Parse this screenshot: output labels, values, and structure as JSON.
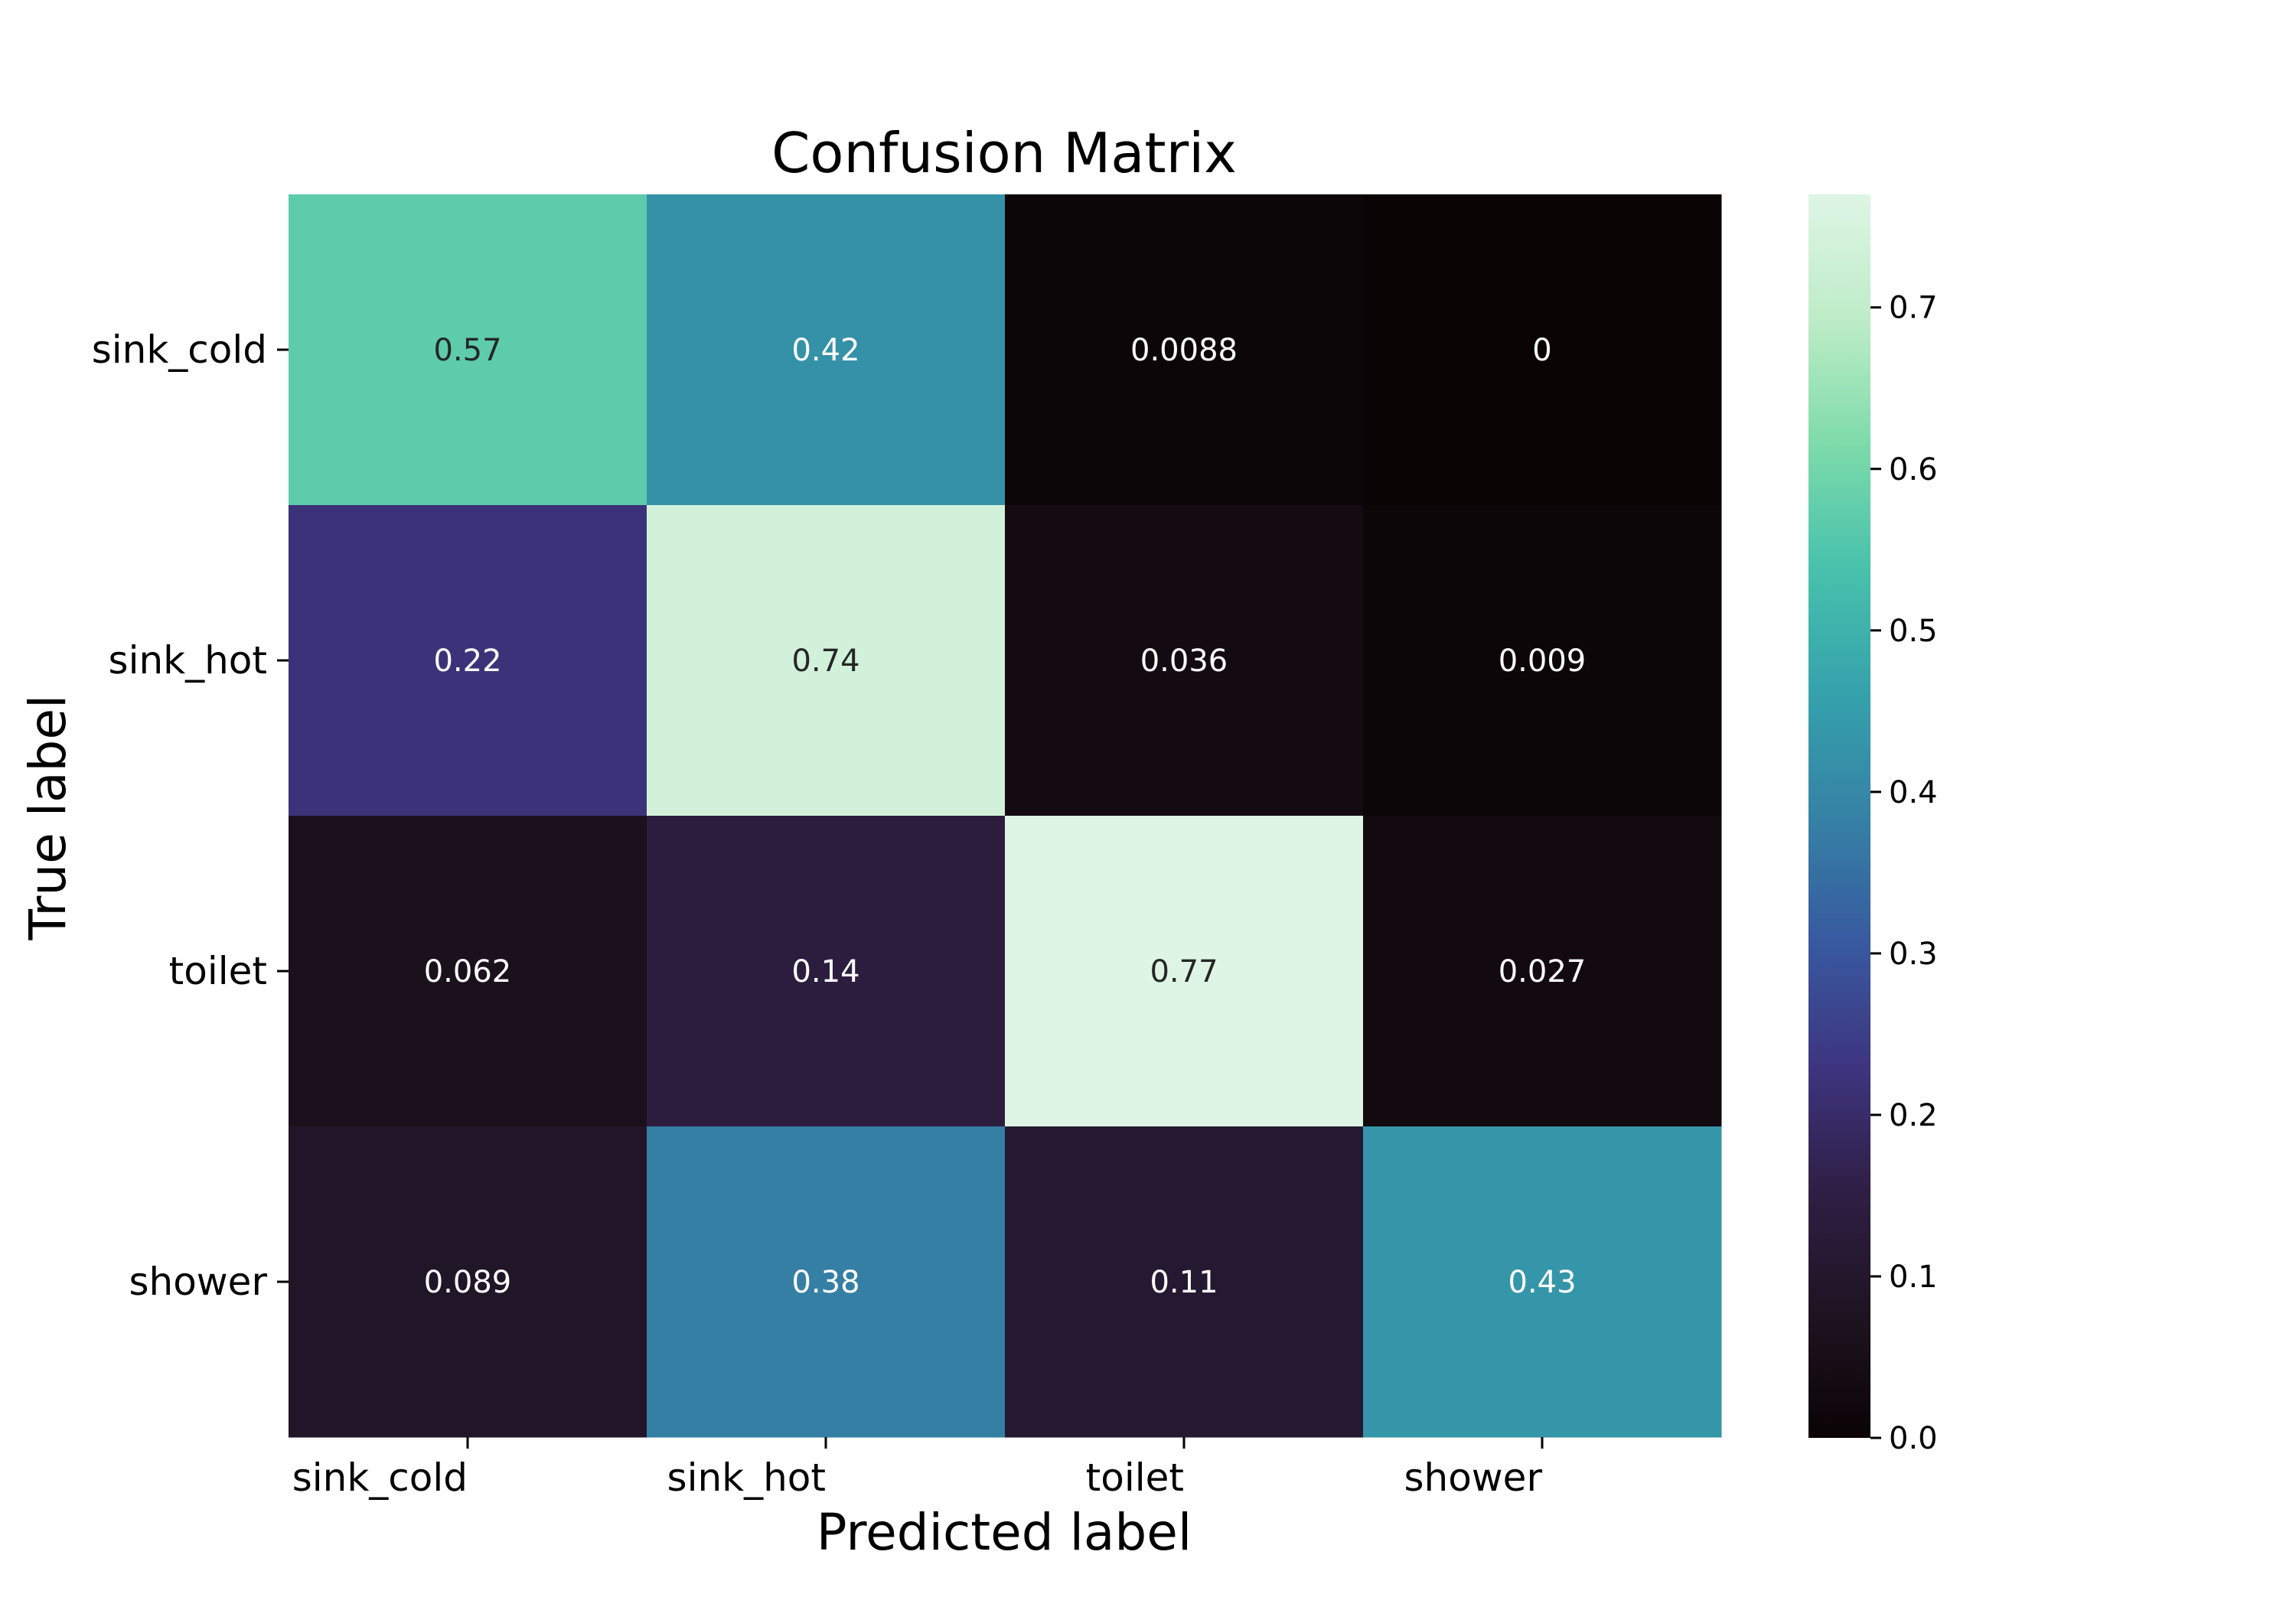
{
  "chart_data": {
    "type": "heatmap",
    "title": "Confusion Matrix",
    "xlabel": "Predicted label",
    "ylabel": "True label",
    "x_categories": [
      "sink_cold",
      "sink_hot",
      "toilet",
      "shower"
    ],
    "y_categories": [
      "sink_cold",
      "sink_hot",
      "toilet",
      "shower"
    ],
    "values": [
      [
        0.57,
        0.42,
        0.0088,
        0
      ],
      [
        0.22,
        0.74,
        0.036,
        0.009
      ],
      [
        0.062,
        0.14,
        0.77,
        0.027
      ],
      [
        0.089,
        0.38,
        0.11,
        0.43
      ]
    ],
    "annotations": [
      [
        "0.57",
        "0.42",
        "0.0088",
        "0"
      ],
      [
        "0.22",
        "0.74",
        "0.036",
        "0.009"
      ],
      [
        "0.062",
        "0.14",
        "0.77",
        "0.027"
      ],
      [
        "0.089",
        "0.38",
        "0.11",
        "0.43"
      ]
    ],
    "colormap": "mako",
    "colorbar": {
      "range": [
        0,
        0.77
      ],
      "ticks": [
        0.0,
        0.1,
        0.2,
        0.3,
        0.4,
        0.5,
        0.6,
        0.7
      ],
      "tick_labels": [
        "0.0",
        "0.1",
        "0.2",
        "0.3",
        "0.4",
        "0.5",
        "0.6",
        "0.7"
      ]
    },
    "grid": false
  },
  "colors": {
    "background": "#ffffff",
    "text": "#000000",
    "annotation_light": "#ffffff",
    "annotation_dark": "#262626"
  }
}
